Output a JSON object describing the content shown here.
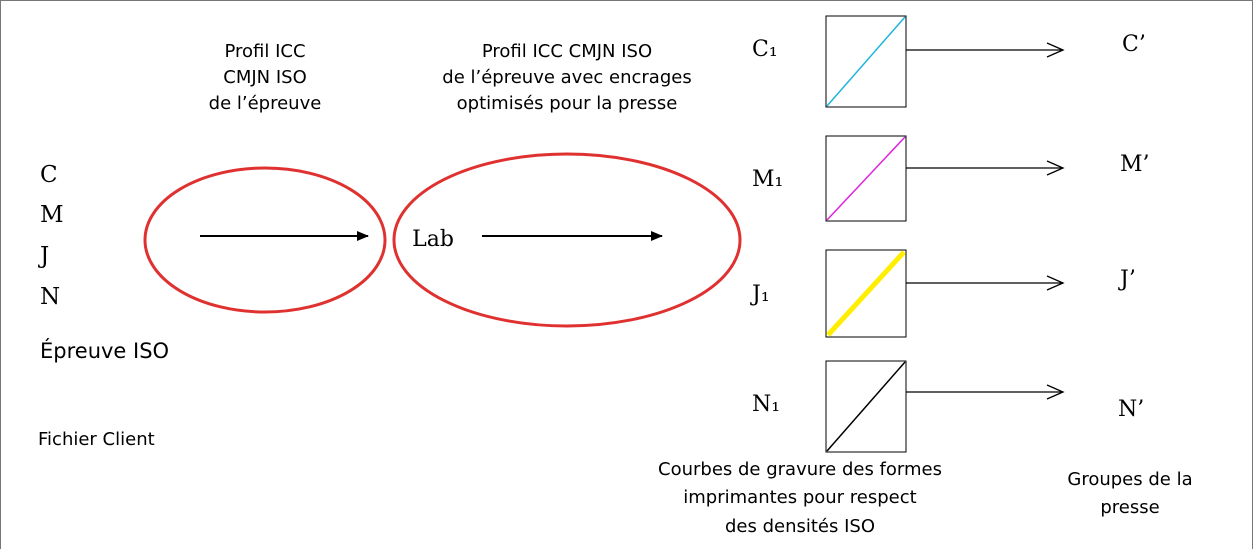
{
  "profile_in": {
    "lines": [
      "Profil ICC",
      "CMJN ISO",
      "de l’épreuve"
    ]
  },
  "profile_out": {
    "lines": [
      "Profil ICC CMJN ISO",
      "de l’épreuve avec encrages",
      "optimisés pour la presse"
    ]
  },
  "input_channels": [
    "C",
    "M",
    "J",
    "N"
  ],
  "proof_label": "Épreuve ISO",
  "file_label": "Fichier Client",
  "center_label": "Lab",
  "curves": [
    {
      "label": "C₁",
      "output": "C’"
    },
    {
      "label": "M₁",
      "output": "M’"
    },
    {
      "label": "J₁",
      "output": "J’"
    },
    {
      "label": "N₁",
      "output": "N’"
    }
  ],
  "curves_caption": {
    "lines": [
      "Courbes de gravure des formes",
      "imprimantes pour respect",
      "des densités ISO"
    ]
  },
  "press_caption": {
    "lines": [
      "Groupes de la",
      "presse"
    ]
  }
}
